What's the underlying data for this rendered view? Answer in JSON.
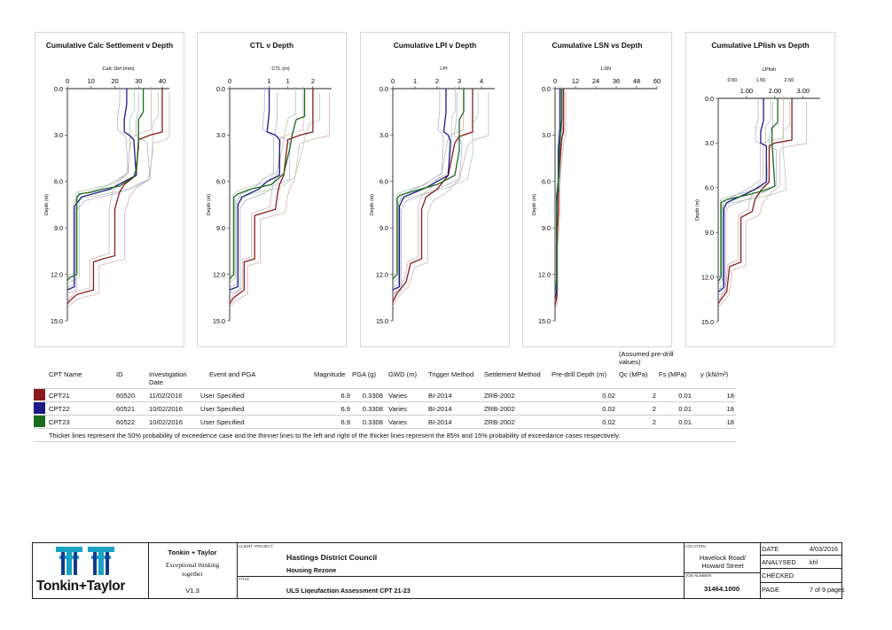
{
  "chart_data": [
    {
      "type": "line",
      "title": "Cumulative Calc Settlement v Depth",
      "xlabel": "Calc Def (mm)",
      "ylabel": "Depth (m)",
      "xlim": [
        0,
        43
      ],
      "ylim": [
        0,
        15
      ],
      "xticks": [
        "0",
        "10",
        "20",
        "30",
        "40"
      ],
      "xtick_values": [
        0,
        10,
        20,
        30,
        40
      ],
      "yticks": [
        "0.0",
        "3.0",
        "6.0",
        "9.0",
        "12.0",
        "15.0"
      ],
      "series": [
        {
          "name": "CPT21",
          "color": "#8b1a1a",
          "points": [
            [
              40,
              0
            ],
            [
              40,
              2.8
            ],
            [
              35,
              3.0
            ],
            [
              30,
              3.3
            ],
            [
              29,
              5.6
            ],
            [
              24,
              6.2
            ],
            [
              22,
              6.7
            ],
            [
              20,
              7.8
            ],
            [
              20,
              10.8
            ],
            [
              15,
              11.0
            ],
            [
              11,
              11.2
            ],
            [
              11,
              13.0
            ],
            [
              4,
              13.3
            ],
            [
              1,
              13.7
            ],
            [
              0,
              13.9
            ]
          ]
        },
        {
          "name": "CPT22",
          "color": "#1a1a8b",
          "points": [
            [
              25,
              0
            ],
            [
              25,
              1.0
            ],
            [
              24,
              2.0
            ],
            [
              24,
              2.8
            ],
            [
              26,
              3.0
            ],
            [
              28,
              3.3
            ],
            [
              29,
              5.6
            ],
            [
              24,
              6.0
            ],
            [
              18,
              6.5
            ],
            [
              6,
              7.0
            ],
            [
              4,
              7.4
            ],
            [
              3,
              7.6
            ],
            [
              3,
              12.8
            ],
            [
              0,
              13.0
            ]
          ]
        },
        {
          "name": "CPT23",
          "color": "#1a6b1a",
          "points": [
            [
              32,
              0
            ],
            [
              32,
              1.5
            ],
            [
              30,
              2.0
            ],
            [
              30,
              3.8
            ],
            [
              29,
              5.2
            ],
            [
              28,
              5.7
            ],
            [
              22,
              6.3
            ],
            [
              15,
              6.5
            ],
            [
              10,
              6.7
            ],
            [
              5,
              6.8
            ],
            [
              4,
              7.0
            ],
            [
              4,
              12.0
            ],
            [
              1,
              12.2
            ],
            [
              0,
              12.4
            ]
          ]
        }
      ]
    },
    {
      "type": "line",
      "title": "CTL v Depth",
      "xlabel": "CTL (m)",
      "ylabel": "Depth (m)",
      "xlim": [
        0,
        2.45
      ],
      "ylim": [
        0,
        15
      ],
      "xticks": [
        "0",
        "1",
        "1",
        "2"
      ],
      "xtick_values": [
        0,
        0.95,
        1.4,
        2.0
      ],
      "yticks": [
        "0.0",
        "3.0",
        "6.0",
        "9.0",
        "12.0",
        "15.0"
      ],
      "series": [
        {
          "name": "CPT21",
          "color": "#8b1a1a",
          "points": [
            [
              2.0,
              0
            ],
            [
              2.0,
              2.8
            ],
            [
              1.7,
              3.0
            ],
            [
              1.4,
              3.3
            ],
            [
              1.3,
              5.6
            ],
            [
              1.2,
              6.2
            ],
            [
              1.15,
              6.8
            ],
            [
              1.1,
              7.8
            ],
            [
              0.6,
              8.2
            ],
            [
              0.6,
              11.0
            ],
            [
              0.35,
              11.2
            ],
            [
              0.35,
              13.0
            ],
            [
              0.1,
              13.5
            ],
            [
              0,
              13.9
            ]
          ]
        },
        {
          "name": "CPT22",
          "color": "#1a1a8b",
          "points": [
            [
              0.95,
              0
            ],
            [
              0.95,
              1.5
            ],
            [
              0.9,
              2.8
            ],
            [
              1.1,
              3.0
            ],
            [
              1.2,
              3.3
            ],
            [
              1.2,
              5.6
            ],
            [
              0.9,
              6.0
            ],
            [
              0.7,
              6.5
            ],
            [
              0.3,
              7.0
            ],
            [
              0.2,
              7.5
            ],
            [
              0.2,
              12.8
            ],
            [
              0,
              13.0
            ]
          ]
        },
        {
          "name": "CPT23",
          "color": "#1a6b1a",
          "points": [
            [
              1.8,
              0
            ],
            [
              1.8,
              1.8
            ],
            [
              1.6,
              2.0
            ],
            [
              1.5,
              3.0
            ],
            [
              1.45,
              3.8
            ],
            [
              1.3,
              5.5
            ],
            [
              1.0,
              6.2
            ],
            [
              0.5,
              6.5
            ],
            [
              0.2,
              6.8
            ],
            [
              0.1,
              7.0
            ],
            [
              0.1,
              12.0
            ],
            [
              0,
              12.3
            ]
          ]
        }
      ]
    },
    {
      "type": "line",
      "title": "Cumulative LPI v Depth",
      "xlabel": "LPI",
      "ylabel": "Depth (m)",
      "xlim": [
        0,
        4.6
      ],
      "ylim": [
        0,
        15
      ],
      "xticks": [
        "0",
        "1",
        "2",
        "3",
        "4"
      ],
      "xtick_values": [
        0,
        1,
        2,
        3,
        4
      ],
      "yticks": [
        "0.0",
        "3.0",
        "6.0",
        "9.0",
        "12.0",
        "15.0"
      ],
      "series": [
        {
          "name": "CPT21",
          "color": "#8b1a1a",
          "points": [
            [
              3.6,
              0
            ],
            [
              3.6,
              2.8
            ],
            [
              3.0,
              3.1
            ],
            [
              2.8,
              3.5
            ],
            [
              2.5,
              5.6
            ],
            [
              2.0,
              6.5
            ],
            [
              1.5,
              7.0
            ],
            [
              1.3,
              7.8
            ],
            [
              1.3,
              11.0
            ],
            [
              0.8,
              11.3
            ],
            [
              0.6,
              12.5
            ],
            [
              0.2,
              13.2
            ],
            [
              0,
              13.8
            ]
          ]
        },
        {
          "name": "CPT22",
          "color": "#1a1a8b",
          "points": [
            [
              2.4,
              0
            ],
            [
              2.4,
              1.5
            ],
            [
              2.3,
              2.8
            ],
            [
              2.5,
              3.0
            ],
            [
              2.6,
              3.4
            ],
            [
              2.5,
              5.6
            ],
            [
              2.0,
              6.0
            ],
            [
              1.5,
              6.4
            ],
            [
              0.5,
              7.0
            ],
            [
              0.3,
              7.6
            ],
            [
              0.3,
              12.8
            ],
            [
              0,
              13.0
            ]
          ]
        },
        {
          "name": "CPT23",
          "color": "#1a6b1a",
          "points": [
            [
              3.2,
              0
            ],
            [
              3.2,
              1.5
            ],
            [
              3.0,
              2.0
            ],
            [
              3.0,
              4.0
            ],
            [
              2.8,
              5.6
            ],
            [
              2.0,
              6.2
            ],
            [
              1.0,
              6.6
            ],
            [
              0.3,
              6.9
            ],
            [
              0.2,
              7.1
            ],
            [
              0.2,
              12.0
            ],
            [
              0,
              12.3
            ]
          ]
        }
      ]
    },
    {
      "type": "line",
      "title": "Cumulative LSN vs Depth",
      "xlabel": "LSN",
      "ylabel": "Depth (m)",
      "xlim": [
        0,
        60
      ],
      "ylim": [
        0,
        15
      ],
      "xticks": [
        "0",
        "12",
        "24",
        "36",
        "48",
        "60"
      ],
      "xtick_values": [
        0,
        12,
        24,
        36,
        48,
        60
      ],
      "yticks": [
        "0.0",
        "3.0",
        "6.0",
        "9.0",
        "12.0",
        "15.0"
      ],
      "series": [
        {
          "name": "CPT21",
          "color": "#8b1a1a",
          "points": [
            [
              5,
              0
            ],
            [
              5,
              2.8
            ],
            [
              4,
              3.2
            ],
            [
              3,
              4.5
            ],
            [
              2,
              6.0
            ],
            [
              2,
              8.0
            ],
            [
              1,
              10.0
            ],
            [
              1,
              13.5
            ],
            [
              0,
              14.0
            ]
          ]
        },
        {
          "name": "CPT22",
          "color": "#1a1a8b",
          "points": [
            [
              3,
              0
            ],
            [
              3,
              2.5
            ],
            [
              2,
              4.0
            ],
            [
              2,
              6.0
            ],
            [
              1,
              7.0
            ],
            [
              1,
              13.0
            ],
            [
              0,
              13.5
            ]
          ]
        },
        {
          "name": "CPT23",
          "color": "#1a6b1a",
          "points": [
            [
              4,
              0
            ],
            [
              4,
              2.0
            ],
            [
              3,
              3.0
            ],
            [
              2,
              6.0
            ],
            [
              1,
              7.5
            ],
            [
              1,
              12.5
            ],
            [
              0,
              13.0
            ]
          ]
        }
      ]
    },
    {
      "type": "line",
      "title": "Cumulative LPIish vs Depth",
      "xlabel": "LPIish",
      "ylabel": "Depth (m)",
      "xlim": [
        0,
        3.6
      ],
      "ylim": [
        0,
        15
      ],
      "xticks_top": [
        "0.50",
        "1.50",
        "2.50"
      ],
      "xtick_top_values": [
        0.5,
        1.5,
        2.5
      ],
      "xticks": [
        "1.00",
        "2.00",
        "3.00"
      ],
      "xtick_values": [
        1.0,
        2.0,
        3.0
      ],
      "yticks": [
        "0.0",
        "3.0",
        "6.0",
        "9.0",
        "12.0",
        "15.0"
      ],
      "series": [
        {
          "name": "CPT21",
          "color": "#8b1a1a",
          "points": [
            [
              2.6,
              0
            ],
            [
              2.6,
              2.8
            ],
            [
              2.0,
              3.0
            ],
            [
              1.8,
              3.2
            ],
            [
              1.8,
              5.6
            ],
            [
              1.5,
              6.2
            ],
            [
              1.3,
              6.8
            ],
            [
              1.2,
              7.6
            ],
            [
              0.8,
              8.0
            ],
            [
              0.8,
              11.0
            ],
            [
              0.4,
              11.3
            ],
            [
              0.3,
              13.0
            ],
            [
              0.1,
              13.5
            ],
            [
              0,
              13.8
            ]
          ]
        },
        {
          "name": "CPT22",
          "color": "#1a1a8b",
          "points": [
            [
              1.6,
              0
            ],
            [
              1.6,
              1.5
            ],
            [
              1.5,
              2.2
            ],
            [
              1.5,
              3.0
            ],
            [
              1.7,
              3.2
            ],
            [
              1.7,
              5.6
            ],
            [
              1.4,
              6.0
            ],
            [
              1.0,
              6.4
            ],
            [
              0.3,
              7.0
            ],
            [
              0.2,
              7.4
            ],
            [
              0.2,
              12.7
            ],
            [
              0,
              13.0
            ]
          ]
        },
        {
          "name": "CPT23",
          "color": "#1a6b1a",
          "points": [
            [
              2.1,
              0
            ],
            [
              2.1,
              1.6
            ],
            [
              1.9,
              2.0
            ],
            [
              1.9,
              3.0
            ],
            [
              2.0,
              5.9
            ],
            [
              1.6,
              6.2
            ],
            [
              1.0,
              6.5
            ],
            [
              0.3,
              6.8
            ],
            [
              0.1,
              7.0
            ],
            [
              0.1,
              12.0
            ],
            [
              0,
              12.3
            ]
          ]
        }
      ]
    }
  ],
  "table": {
    "headers": {
      "name": "CPT Name",
      "id": "ID",
      "date": "Investigation Date",
      "event": "Event and PGA",
      "magnitude": "Magnitude",
      "pga": "PGA (g)",
      "gwd": "GWD (m)",
      "trigger": "Trigger Method",
      "settlement": "Settlement Method",
      "predrill": "Pre-drill Depth (m)",
      "qc_note": "(Assumed pre-drill values)",
      "qc": "Qc (MPa)",
      "fs": "Fs (MPa)",
      "gamma": "γ (kN/m³)"
    },
    "rows": [
      {
        "color": "#8b1a1a",
        "name": "CPT21",
        "id": "60520",
        "date": "11/02/2016",
        "event": "User Specified",
        "magnitude": "6.9",
        "pga": "0.3308",
        "gwd": "Varies",
        "trigger": "BI-2014",
        "settlement": "ZRB-2002",
        "predrill": "0.02",
        "qc": "2",
        "fs": "0.01",
        "gamma": "18"
      },
      {
        "color": "#1a1a8b",
        "name": "CPT22",
        "id": "60521",
        "date": "10/02/2016",
        "event": "User Specified",
        "magnitude": "6.9",
        "pga": "0.3308",
        "gwd": "Varies",
        "trigger": "BI-2014",
        "settlement": "ZRB-2002",
        "predrill": "0.02",
        "qc": "2",
        "fs": "0.01",
        "gamma": "18"
      },
      {
        "color": "#1a6b1a",
        "name": "CPT23",
        "id": "60522",
        "date": "10/02/2016",
        "event": "User Specified",
        "magnitude": "6.9",
        "pga": "0.3308",
        "gwd": "Varies",
        "trigger": "BI-2014",
        "settlement": "ZRB-2002",
        "predrill": "0.02",
        "qc": "2",
        "fs": "0.01",
        "gamma": "18"
      }
    ],
    "note": "Thicker lines represent the 50% probability of exceedence case and the thinner lines to the left and right of the thicker lines represent the 85% and 15% probability of exceedance cases respectively."
  },
  "title_block": {
    "logo_text": "Tonkin+Taylor",
    "company": "Tonkin + Taylor",
    "tagline": "Exceptional thinking together",
    "version": "V1.3",
    "client_label": "CLIENT, PROJECT",
    "client": "Hastings District Council",
    "project": "Housing Rezone",
    "title_label": "TITLE",
    "title": "ULS Liqeufaction Assessment CPT 21-23",
    "location_label": "LOCATION",
    "location": "Havelock Road/ Howard Street",
    "job_label": "JOB NUMBER",
    "job_number": "31464.1000",
    "date_label": "DATE",
    "date": "4/03/2016",
    "analysed_label": "ANALYSED",
    "analysed": "khl",
    "checked_label": "CHECKED",
    "checked": "",
    "page_label": "PAGE",
    "page": "7 of 9 pages"
  }
}
